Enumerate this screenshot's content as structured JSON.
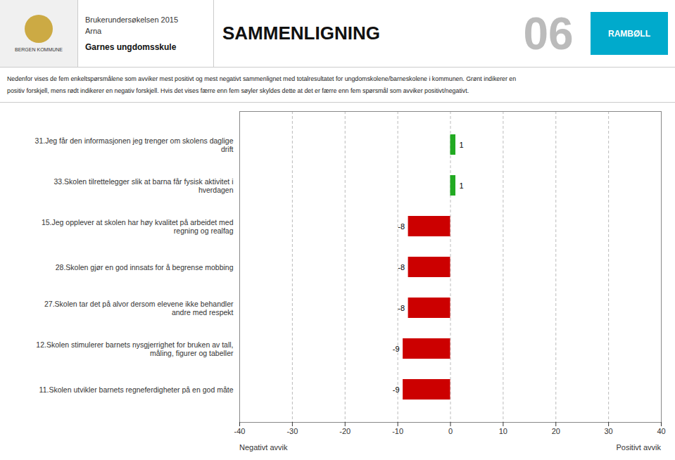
{
  "chart_data": {
    "type": "bar",
    "orientation": "horizontal",
    "title": "SAMMENLIGNING",
    "subtitle": "Nedenfor vises de fem enkeltspørsmålene som avviker mest positivt og mest negativt sammenlignet med totalresultatet for ungdomskolene/barneskolene i kommunen. Grønt indikerer en\npositiv forskjell, mens rødt indikerer en negativ forskjell. Hvis det vises færre enn fem søyler skyldes dette at det er færre enn fem spørsmål som avviker positivt/negativt.",
    "categories": [
      "31.Jeg får den informasjonen jeg trenger om skolens daglige\ndrift",
      "33.Skolen tilrettelegger slik at barna får fysisk aktivitet i\nhverdagen",
      "15.Jeg opplever at skolen har høy kvalitet på arbeidet med\nregning og realfag",
      "28.Skolen gjør en god innsats for å begrense mobbing",
      "27.Skolen tar det på alvor dersom elevene ikke behandler\nandre med respekt",
      "12.Skolen stimulerer barnets nysgjerrighet for bruken av tall,\nmåling, figurer og tabeller",
      "11.Skolen utvikler barnets regneferdigheter på en god måte"
    ],
    "values": [
      1,
      1,
      -8,
      -8,
      -8,
      -9,
      -9
    ],
    "colors": [
      "#22aa22",
      "#22aa22",
      "#cc0000",
      "#cc0000",
      "#cc0000",
      "#cc0000",
      "#cc0000"
    ],
    "xlim": [
      -40,
      40
    ],
    "xticks": [
      -40,
      -30,
      -20,
      -10,
      0,
      10,
      20,
      30,
      40
    ],
    "grid": true,
    "data_labels": true,
    "annotations": [
      "BERGEN KOMMUNE",
      "Brukerundersøkelsen 2015",
      "Arna",
      "Garnes ungdomsskule",
      "06",
      "RAMBØLL",
      "Negativt avvik",
      "Positivt avvik"
    ]
  }
}
